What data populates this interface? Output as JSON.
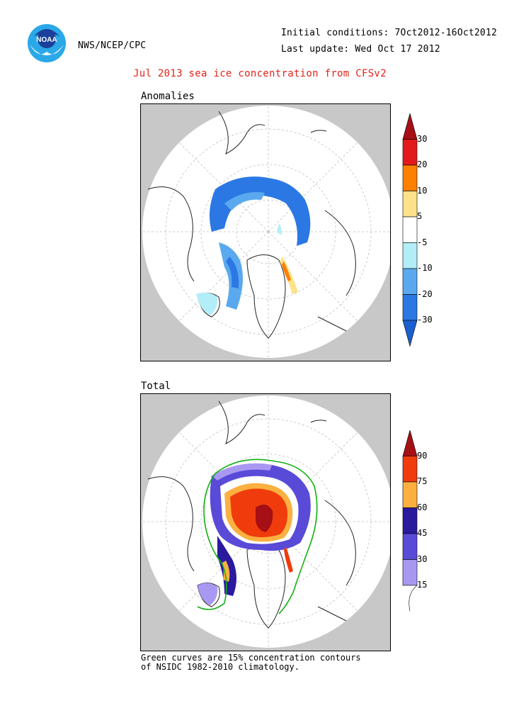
{
  "header": {
    "org": "NWS/NCEP/CPC",
    "initial_conditions": "Initial conditions: 7Oct2012-16Oct2012",
    "last_update": "Last update: Wed Oct 17 2012",
    "logo_text": "NOAA",
    "title": "Jul 2013 sea ice concentration from CFSv2"
  },
  "panels": {
    "anomalies": {
      "label": "Anomalies",
      "colorbar": {
        "labels": [
          "30",
          "20",
          "10",
          "5",
          "-5",
          "-10",
          "-20",
          "-30"
        ],
        "colors": [
          "#a50f15",
          "#e31a1c",
          "#ff7f00",
          "#fde28a",
          "#ffffff",
          "#b3eef8",
          "#5aa9ef",
          "#2b78e4",
          "#1a5fd0"
        ]
      }
    },
    "total": {
      "label": "Total",
      "colorbar": {
        "labels": [
          "90",
          "75",
          "60",
          "45",
          "30",
          "15"
        ],
        "colors": [
          "#a50f15",
          "#f03c0c",
          "#fbb040",
          "#2a1a9e",
          "#5a4ad8",
          "#a898f2",
          "#ffffff"
        ]
      }
    }
  },
  "footnote": {
    "line1": "Green curves are 15% concentration contours",
    "line2": "of NSIDC 1982-2010 climatology."
  }
}
